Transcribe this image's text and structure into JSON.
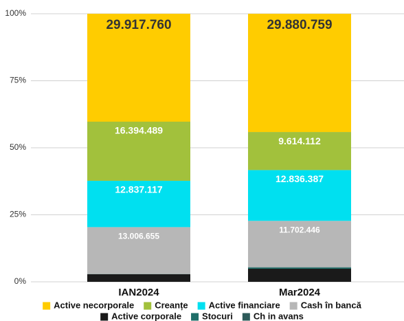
{
  "chart_data": {
    "type": "stacked_percent_bar",
    "categories": [
      "IAN2024",
      "Mar2024"
    ],
    "series": [
      {
        "name": "Active corporale",
        "color": "#1a1a1a",
        "values": [
          2100000,
          3300000
        ]
      },
      {
        "name": "Stocuri",
        "color": "#1f6e68",
        "values": [
          40000,
          300000
        ]
      },
      {
        "name": "Ch in avans",
        "color": "#2d5b5a",
        "values": [
          20000,
          100000
        ]
      },
      {
        "name": "Cash în bancă",
        "color": "#b7b7b7",
        "values": [
          13006655,
          11702446
        ],
        "value_labels": [
          "13.006.655",
          "11.702.446"
        ]
      },
      {
        "name": "Active financiare",
        "color": "#00e0f0",
        "values": [
          12837117,
          12836387
        ],
        "value_labels": [
          "12.837.117",
          "12.836.387"
        ]
      },
      {
        "name": "Creanțe",
        "color": "#a2c13c",
        "values": [
          16394489,
          9614112
        ],
        "value_labels": [
          "16.394.489",
          "9.614.112"
        ]
      },
      {
        "name": "Active necorporale",
        "color": "#ffcc00",
        "values": [
          29917760,
          29880759
        ],
        "value_labels": [
          "29.917.760",
          "29.880.759"
        ]
      }
    ],
    "legend_order": [
      6,
      5,
      4,
      3,
      0,
      1,
      2
    ],
    "ylim": [
      0,
      100
    ],
    "yticks": [
      {
        "value": 0,
        "label": "0%"
      },
      {
        "value": 25,
        "label": "25%"
      },
      {
        "value": 50,
        "label": "50%"
      },
      {
        "value": 75,
        "label": "75%"
      },
      {
        "value": 100,
        "label": "100%"
      }
    ],
    "grid": true
  }
}
